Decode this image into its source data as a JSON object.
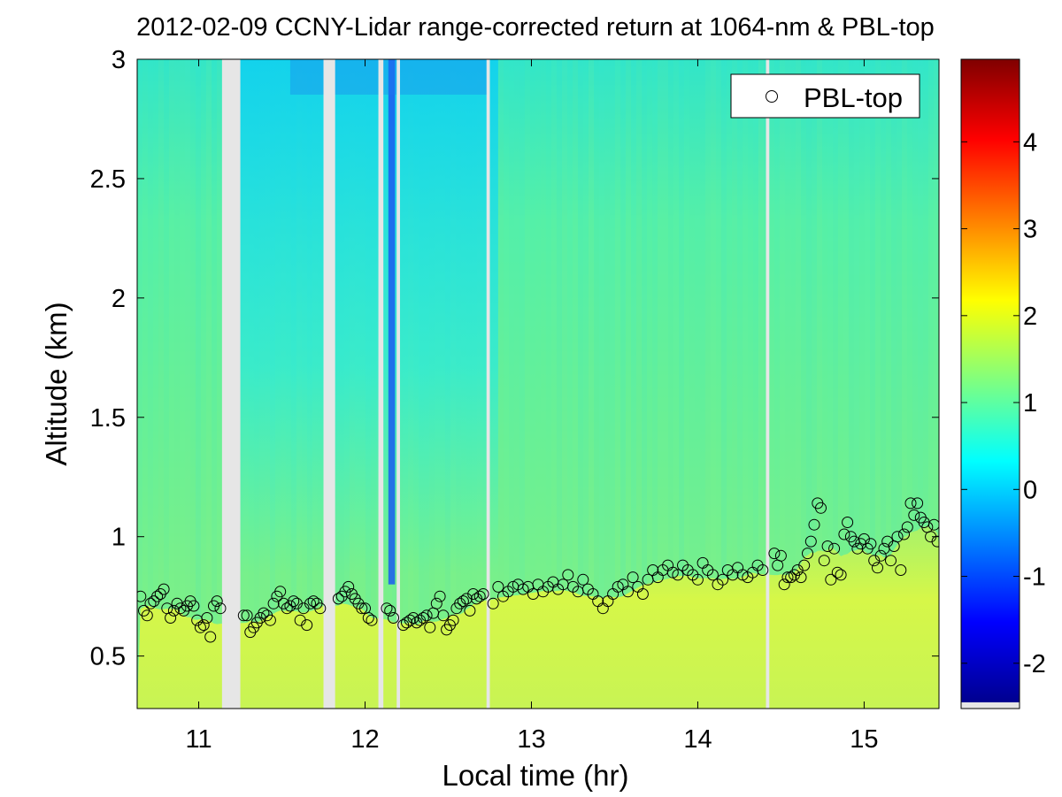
{
  "chart_data": {
    "type": "heatmap",
    "title": "2012-02-09 CCNY-Lidar range-corrected return at 1064-nm & PBL-top",
    "xlabel": "Local time (hr)",
    "ylabel": "Altitude (km)",
    "xlim": [
      10.63,
      15.45
    ],
    "ylim": [
      0.28,
      3.0
    ],
    "xticks": [
      11,
      12,
      13,
      14,
      15
    ],
    "xtick_labels": [
      "11",
      "12",
      "13",
      "14",
      "15"
    ],
    "yticks": [
      0.5,
      1,
      1.5,
      2,
      2.5,
      3
    ],
    "ytick_labels": [
      "0.5",
      "1",
      "1.5",
      "2",
      "2.5",
      "3"
    ],
    "colorbar": {
      "range": [
        -2.45,
        4.95
      ],
      "ticks": [
        -2,
        -1,
        0,
        1,
        2,
        3,
        4
      ],
      "tick_labels": [
        "-2",
        "-1",
        "0",
        "1",
        "2",
        "3",
        "4"
      ],
      "colormap": "jet"
    },
    "legend": {
      "location": "top-right",
      "entries": [
        "PBL-top"
      ]
    },
    "data_gaps_hr": [
      [
        11.14,
        11.25
      ],
      [
        11.75,
        11.82
      ],
      [
        12.08,
        12.11
      ],
      [
        12.19,
        12.21
      ],
      [
        12.73,
        12.75
      ],
      [
        14.41,
        14.43
      ]
    ],
    "pbl_top": {
      "name": "PBL-top",
      "marker": "open-circle",
      "x": [
        10.65,
        10.67,
        10.69,
        10.71,
        10.73,
        10.75,
        10.77,
        10.79,
        10.81,
        10.83,
        10.85,
        10.87,
        10.89,
        10.91,
        10.93,
        10.95,
        10.97,
        10.99,
        11.01,
        11.03,
        11.05,
        11.07,
        11.09,
        11.11,
        11.13,
        11.27,
        11.29,
        11.31,
        11.33,
        11.35,
        11.37,
        11.39,
        11.41,
        11.43,
        11.45,
        11.47,
        11.49,
        11.51,
        11.53,
        11.55,
        11.57,
        11.59,
        11.61,
        11.63,
        11.65,
        11.67,
        11.69,
        11.71,
        11.73,
        11.84,
        11.86,
        11.88,
        11.9,
        11.92,
        11.94,
        11.96,
        11.98,
        12.0,
        12.02,
        12.04,
        12.13,
        12.15,
        12.17,
        12.23,
        12.25,
        12.27,
        12.29,
        12.31,
        12.33,
        12.35,
        12.37,
        12.39,
        12.41,
        12.43,
        12.45,
        12.47,
        12.49,
        12.51,
        12.53,
        12.55,
        12.57,
        12.59,
        12.61,
        12.63,
        12.65,
        12.67,
        12.69,
        12.71,
        12.77,
        12.8,
        12.83,
        12.86,
        12.89,
        12.92,
        12.95,
        12.98,
        13.01,
        13.04,
        13.07,
        13.1,
        13.13,
        13.16,
        13.19,
        13.22,
        13.25,
        13.28,
        13.31,
        13.34,
        13.37,
        13.4,
        13.43,
        13.46,
        13.49,
        13.52,
        13.55,
        13.58,
        13.61,
        13.64,
        13.67,
        13.7,
        13.73,
        13.76,
        13.79,
        13.82,
        13.85,
        13.88,
        13.91,
        13.94,
        13.97,
        14.0,
        14.03,
        14.06,
        14.09,
        14.12,
        14.15,
        14.18,
        14.21,
        14.24,
        14.27,
        14.3,
        14.33,
        14.36,
        14.39,
        14.46,
        14.48,
        14.5,
        14.52,
        14.54,
        14.56,
        14.58,
        14.6,
        14.62,
        14.64,
        14.66,
        14.68,
        14.7,
        14.72,
        14.74,
        14.76,
        14.78,
        14.8,
        14.82,
        14.84,
        14.86,
        14.88,
        14.9,
        14.92,
        14.94,
        14.96,
        14.98,
        15.0,
        15.02,
        15.04,
        15.06,
        15.08,
        15.1,
        15.12,
        15.14,
        15.16,
        15.18,
        15.2,
        15.22,
        15.24,
        15.26,
        15.28,
        15.3,
        15.32,
        15.34,
        15.36,
        15.38,
        15.4,
        15.42,
        15.44
      ],
      "y": [
        0.75,
        0.69,
        0.67,
        0.72,
        0.73,
        0.75,
        0.76,
        0.78,
        0.7,
        0.66,
        0.69,
        0.72,
        0.7,
        0.69,
        0.71,
        0.73,
        0.71,
        0.65,
        0.62,
        0.63,
        0.66,
        0.58,
        0.71,
        0.73,
        0.7,
        0.67,
        0.67,
        0.6,
        0.62,
        0.64,
        0.66,
        0.68,
        0.67,
        0.65,
        0.72,
        0.75,
        0.77,
        0.72,
        0.7,
        0.71,
        0.73,
        0.72,
        0.65,
        0.7,
        0.63,
        0.72,
        0.73,
        0.72,
        0.7,
        0.74,
        0.75,
        0.77,
        0.79,
        0.76,
        0.74,
        0.72,
        0.7,
        0.7,
        0.66,
        0.65,
        0.7,
        0.69,
        0.66,
        0.63,
        0.64,
        0.65,
        0.66,
        0.64,
        0.65,
        0.66,
        0.67,
        0.62,
        0.68,
        0.72,
        0.75,
        0.67,
        0.61,
        0.63,
        0.65,
        0.7,
        0.72,
        0.73,
        0.74,
        0.69,
        0.76,
        0.74,
        0.75,
        0.76,
        0.72,
        0.79,
        0.75,
        0.77,
        0.79,
        0.8,
        0.78,
        0.79,
        0.76,
        0.8,
        0.77,
        0.79,
        0.81,
        0.78,
        0.8,
        0.84,
        0.79,
        0.77,
        0.82,
        0.78,
        0.76,
        0.73,
        0.7,
        0.73,
        0.76,
        0.79,
        0.8,
        0.77,
        0.83,
        0.79,
        0.76,
        0.82,
        0.86,
        0.83,
        0.86,
        0.88,
        0.85,
        0.84,
        0.88,
        0.86,
        0.84,
        0.82,
        0.89,
        0.86,
        0.84,
        0.8,
        0.82,
        0.86,
        0.84,
        0.87,
        0.84,
        0.83,
        0.85,
        0.88,
        0.86,
        0.93,
        0.88,
        0.92,
        0.8,
        0.83,
        0.83,
        0.84,
        0.86,
        0.83,
        0.88,
        0.93,
        0.98,
        1.05,
        1.14,
        1.12,
        0.9,
        0.96,
        0.82,
        0.95,
        0.85,
        0.84,
        1.01,
        1.06,
        1.0,
        0.98,
        0.95,
        0.97,
        0.99,
        0.95,
        0.97,
        0.9,
        0.87,
        0.92,
        0.95,
        0.98,
        0.9,
        0.96,
        1.0,
        0.86,
        1.01,
        1.04,
        1.14,
        1.09,
        1.14,
        1.08,
        1.06,
        1.04,
        1.0,
        1.05,
        0.98
      ]
    }
  }
}
